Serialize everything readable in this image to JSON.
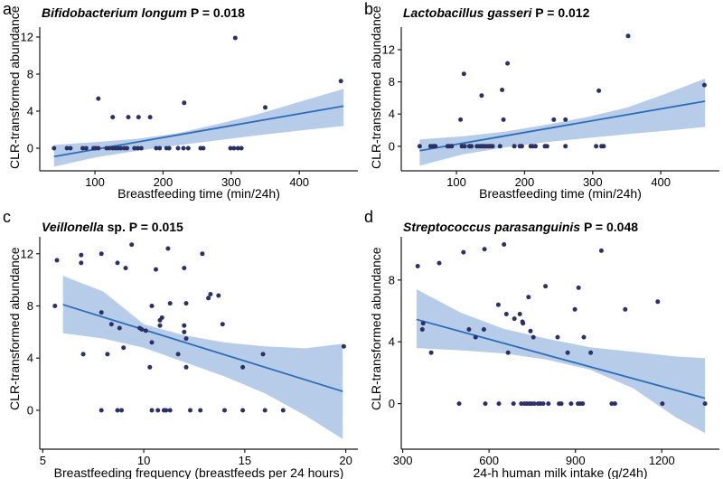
{
  "figure": {
    "background": "#ffffff"
  },
  "colors": {
    "dot": "#2b3067",
    "line": "#2c6db6",
    "band": "#b7cce8",
    "axis": "#1a1a1a",
    "text": "#000000"
  },
  "chart_data": [
    {
      "type": "scatter",
      "panel": "a",
      "title_italic": "Bifidobacterium longum",
      "title_rest": " P = 0.018",
      "title_full": "Bifidobacterium longum P = 0.018",
      "p_value": 0.018,
      "xlabel": "Breastfeeding time (min/24h)",
      "ylabel": "CLR-transformed abundance",
      "xlim": [
        19,
        486
      ],
      "ylim": [
        -2.44,
        13.07
      ],
      "xticks": [
        100,
        200,
        300,
        400
      ],
      "yticks": [
        0,
        4,
        8,
        12
      ],
      "points": [
        [
          40,
          0
        ],
        [
          59,
          0
        ],
        [
          64,
          0
        ],
        [
          82,
          0
        ],
        [
          87,
          0
        ],
        [
          98,
          0
        ],
        [
          101,
          0
        ],
        [
          105,
          0
        ],
        [
          117,
          0
        ],
        [
          121,
          0
        ],
        [
          126,
          0
        ],
        [
          130,
          0
        ],
        [
          134,
          0
        ],
        [
          138,
          0
        ],
        [
          143,
          0
        ],
        [
          147,
          0
        ],
        [
          158,
          0
        ],
        [
          163,
          0
        ],
        [
          168,
          0
        ],
        [
          190,
          0
        ],
        [
          195,
          0
        ],
        [
          205,
          0
        ],
        [
          209,
          0
        ],
        [
          222,
          0
        ],
        [
          230,
          0
        ],
        [
          237,
          0
        ],
        [
          255,
          0
        ],
        [
          259,
          0
        ],
        [
          299,
          0
        ],
        [
          304,
          0
        ],
        [
          310,
          0
        ],
        [
          315,
          0
        ],
        [
          105,
          5.35
        ],
        [
          126,
          3.35
        ],
        [
          149,
          3.35
        ],
        [
          164,
          3.35
        ],
        [
          181,
          3.35
        ],
        [
          231,
          4.9
        ],
        [
          306,
          11.9
        ],
        [
          350,
          4.4
        ],
        [
          461,
          7.25
        ]
      ],
      "regression_line": {
        "x1": 40,
        "y1": -0.9,
        "x2": 465,
        "y2": 4.55
      },
      "confidence_band": {
        "x": [
          40,
          100,
          160,
          220,
          280,
          340,
          400,
          465
        ],
        "lower": [
          -2.0,
          -1.0,
          -0.3,
          0.3,
          0.85,
          1.4,
          1.9,
          2.4
        ],
        "upper": [
          0.35,
          0.65,
          1.0,
          1.6,
          2.6,
          3.7,
          5.0,
          6.4
        ]
      }
    },
    {
      "type": "scatter",
      "panel": "b",
      "title_italic": "Lactobacillus gasseri",
      "title_rest": " P = 0.012",
      "title_full": "Lactobacillus gasseri P = 0.012",
      "p_value": 0.012,
      "xlabel": "Breastfeeding time (min/24h)",
      "ylabel": "CLR-transformed abundance",
      "xlim": [
        19,
        486
      ],
      "ylim": [
        -3.05,
        14.8
      ],
      "xticks": [
        100,
        200,
        300,
        400
      ],
      "yticks": [
        0,
        4,
        8,
        12
      ],
      "points": [
        [
          46,
          0
        ],
        [
          62,
          0
        ],
        [
          66,
          0
        ],
        [
          69,
          0
        ],
        [
          87,
          0
        ],
        [
          90,
          0
        ],
        [
          93,
          0
        ],
        [
          108,
          0
        ],
        [
          112,
          0
        ],
        [
          119,
          0
        ],
        [
          122,
          0
        ],
        [
          130,
          0
        ],
        [
          134,
          0
        ],
        [
          137,
          0
        ],
        [
          140,
          0
        ],
        [
          143,
          0
        ],
        [
          147,
          0
        ],
        [
          150,
          0
        ],
        [
          153,
          0
        ],
        [
          164,
          0
        ],
        [
          185,
          0
        ],
        [
          193,
          0
        ],
        [
          196,
          0
        ],
        [
          209,
          0
        ],
        [
          212,
          0
        ],
        [
          216,
          0
        ],
        [
          230,
          0
        ],
        [
          233,
          0
        ],
        [
          260,
          0
        ],
        [
          305,
          0
        ],
        [
          313,
          0
        ],
        [
          316,
          0
        ],
        [
          106,
          3.3
        ],
        [
          111,
          9.0
        ],
        [
          137,
          6.3
        ],
        [
          167,
          7.0
        ],
        [
          169,
          3.3
        ],
        [
          175,
          10.3
        ],
        [
          243,
          3.3
        ],
        [
          260,
          3.3
        ],
        [
          309,
          6.9
        ],
        [
          352,
          13.7
        ],
        [
          464,
          7.6
        ]
      ],
      "regression_line": {
        "x1": 46,
        "y1": -0.55,
        "x2": 465,
        "y2": 5.6
      },
      "confidence_band": {
        "x": [
          46,
          110,
          170,
          230,
          290,
          350,
          410,
          465
        ],
        "lower": [
          -2.4,
          -1.0,
          -0.15,
          0.5,
          1.0,
          1.5,
          1.95,
          2.4
        ],
        "upper": [
          0.85,
          1.25,
          1.8,
          2.65,
          3.6,
          4.8,
          6.6,
          8.4
        ]
      }
    },
    {
      "type": "scatter",
      "panel": "c",
      "title_italic": "Veillonella",
      "title_rest": " sp. P = 0.015",
      "title_full": "Veillonella sp. P = 0.015",
      "p_value": 0.015,
      "xlabel": "Breastfeeding frequency (breastfeeds per 24 hours)",
      "ylabel": "CLR-transformed abundance",
      "xlim": [
        4.85,
        20.6
      ],
      "ylim": [
        -2.98,
        13.3
      ],
      "xticks": [
        5,
        10,
        15,
        20
      ],
      "yticks": [
        0,
        4,
        8,
        12
      ],
      "points": [
        [
          5.7,
          11.5
        ],
        [
          5.6,
          8.0
        ],
        [
          6.9,
          11.9
        ],
        [
          6.9,
          11.3
        ],
        [
          7.0,
          4.3
        ],
        [
          7.9,
          12.0
        ],
        [
          7.9,
          7.5
        ],
        [
          7.9,
          0
        ],
        [
          8.2,
          4.3
        ],
        [
          8.4,
          6.6
        ],
        [
          8.7,
          11.3
        ],
        [
          8.7,
          0
        ],
        [
          8.8,
          6.3
        ],
        [
          8.9,
          0
        ],
        [
          9.0,
          4.8
        ],
        [
          9.1,
          10.9
        ],
        [
          9.4,
          12.7
        ],
        [
          9.8,
          6.3
        ],
        [
          9.9,
          6.2
        ],
        [
          10.1,
          6.1
        ],
        [
          10.4,
          8.0
        ],
        [
          10.4,
          5.2
        ],
        [
          10.3,
          3.3
        ],
        [
          10.4,
          0
        ],
        [
          10.6,
          10.8
        ],
        [
          10.7,
          0
        ],
        [
          10.8,
          6.9
        ],
        [
          10.9,
          7.1
        ],
        [
          10.8,
          6.5
        ],
        [
          11.0,
          0
        ],
        [
          11.1,
          0
        ],
        [
          11.2,
          12.4
        ],
        [
          11.3,
          8.2
        ],
        [
          11.3,
          0
        ],
        [
          11.7,
          4.3
        ],
        [
          12.0,
          10.9
        ],
        [
          12.1,
          8.2
        ],
        [
          12.0,
          6.5
        ],
        [
          12.0,
          6.0
        ],
        [
          12.1,
          5.5
        ],
        [
          12.1,
          3.3
        ],
        [
          12.3,
          0
        ],
        [
          12.9,
          12.0
        ],
        [
          12.8,
          0
        ],
        [
          13.2,
          8.6
        ],
        [
          13.3,
          8.9
        ],
        [
          13.7,
          8.8
        ],
        [
          13.9,
          6.6
        ],
        [
          14.0,
          0
        ],
        [
          14.9,
          3.3
        ],
        [
          14.9,
          0
        ],
        [
          15.9,
          4.3
        ],
        [
          16.0,
          0
        ],
        [
          16.9,
          0
        ],
        [
          19.9,
          4.9
        ]
      ],
      "regression_line": {
        "x1": 6.0,
        "y1": 8.1,
        "x2": 19.85,
        "y2": 1.45
      },
      "confidence_band": {
        "x": [
          6,
          8,
          10,
          12,
          14,
          16,
          18,
          19.85
        ],
        "lower": [
          5.9,
          5.5,
          4.8,
          3.7,
          2.6,
          1.3,
          -0.4,
          -2.2
        ],
        "upper": [
          10.3,
          9.1,
          6.6,
          5.75,
          5.2,
          4.9,
          4.75,
          5.1
        ]
      }
    },
    {
      "type": "scatter",
      "panel": "d",
      "title_italic": "Streptococcus parasanguinis",
      "title_rest": " P = 0.048",
      "title_full": "Streptococcus parasanguinis P = 0.048",
      "p_value": 0.048,
      "xlabel": "24-h human milk intake (g/24h)",
      "ylabel": "CLR-transformed abundance",
      "xlim": [
        295,
        1400
      ],
      "ylim": [
        -2.95,
        10.8
      ],
      "xticks": [
        300,
        600,
        900,
        1200
      ],
      "yticks": [
        0,
        4,
        8
      ],
      "points": [
        [
          352,
          8.9
        ],
        [
          368,
          4.8
        ],
        [
          371,
          5.2
        ],
        [
          399,
          3.3
        ],
        [
          427,
          9.1
        ],
        [
          496,
          0
        ],
        [
          511,
          9.8
        ],
        [
          530,
          4.8
        ],
        [
          553,
          4.3
        ],
        [
          582,
          4.8
        ],
        [
          584,
          10.0
        ],
        [
          587,
          0
        ],
        [
          632,
          6.4
        ],
        [
          634,
          0
        ],
        [
          652,
          10.3
        ],
        [
          660,
          5.8
        ],
        [
          666,
          3.3
        ],
        [
          685,
          0
        ],
        [
          688,
          5.5
        ],
        [
          707,
          5.8
        ],
        [
          712,
          0
        ],
        [
          716,
          5.3
        ],
        [
          718,
          5.2
        ],
        [
          723,
          0
        ],
        [
          731,
          0
        ],
        [
          737,
          6.9
        ],
        [
          740,
          0
        ],
        [
          744,
          4.7
        ],
        [
          748,
          0
        ],
        [
          754,
          4.3
        ],
        [
          757,
          0
        ],
        [
          770,
          0
        ],
        [
          778,
          0
        ],
        [
          788,
          0
        ],
        [
          796,
          7.6
        ],
        [
          806,
          0
        ],
        [
          838,
          4.3
        ],
        [
          843,
          0
        ],
        [
          851,
          0
        ],
        [
          873,
          3.3
        ],
        [
          885,
          0
        ],
        [
          898,
          6.1
        ],
        [
          909,
          0
        ],
        [
          911,
          7.5
        ],
        [
          917,
          0
        ],
        [
          925,
          0
        ],
        [
          929,
          4.3
        ],
        [
          953,
          3.3
        ],
        [
          990,
          9.9
        ],
        [
          1026,
          0
        ],
        [
          1037,
          0
        ],
        [
          1073,
          6.1
        ],
        [
          1186,
          6.6
        ],
        [
          1202,
          0
        ],
        [
          1350,
          0
        ]
      ],
      "regression_line": {
        "x1": 348,
        "y1": 5.45,
        "x2": 1350,
        "y2": 0.35
      },
      "confidence_band": {
        "x": [
          348,
          500,
          650,
          800,
          950,
          1100,
          1250,
          1350
        ],
        "lower": [
          3.6,
          3.45,
          3.25,
          2.85,
          2.2,
          1.0,
          -0.9,
          -1.9
        ],
        "upper": [
          7.4,
          5.9,
          4.85,
          4.2,
          3.65,
          3.35,
          3.05,
          2.95
        ]
      }
    }
  ]
}
